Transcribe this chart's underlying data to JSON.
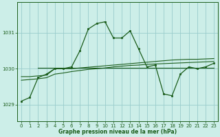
{
  "xlabel": "Graphe pression niveau de la mer (hPa)",
  "bg_color": "#cceee8",
  "grid_color": "#99cccc",
  "line_color": "#1a5c1a",
  "x_hours": [
    0,
    1,
    2,
    3,
    4,
    5,
    6,
    7,
    8,
    9,
    10,
    11,
    12,
    13,
    14,
    15,
    16,
    17,
    18,
    19,
    20,
    21,
    22,
    23
  ],
  "main_line": [
    1029.1,
    1029.2,
    1029.75,
    1029.85,
    1030.0,
    1030.0,
    1030.05,
    1030.5,
    1031.1,
    1031.25,
    1031.3,
    1030.85,
    1030.85,
    1031.05,
    1030.55,
    1030.05,
    1030.1,
    1029.3,
    1029.25,
    1029.85,
    1030.05,
    1030.0,
    1030.05,
    1030.15
  ],
  "smooth_line1": [
    1029.78,
    1029.78,
    1029.8,
    1029.82,
    1030.0,
    1030.0,
    1030.0,
    1030.02,
    1030.04,
    1030.06,
    1030.08,
    1030.1,
    1030.12,
    1030.14,
    1030.16,
    1030.18,
    1030.2,
    1030.22,
    1030.24,
    1030.25,
    1030.26,
    1030.26,
    1030.27,
    1030.28
  ],
  "smooth_line2": [
    1029.68,
    1029.7,
    1029.72,
    1029.75,
    1029.85,
    1029.88,
    1029.92,
    1029.95,
    1029.98,
    1030.0,
    1030.02,
    1030.05,
    1030.07,
    1030.09,
    1030.1,
    1030.12,
    1030.13,
    1030.14,
    1030.15,
    1030.16,
    1030.17,
    1030.18,
    1030.19,
    1030.2
  ],
  "flat_line_y": 1030.02,
  "flat_line_x_start": 2,
  "yticks": [
    1029,
    1030,
    1031
  ],
  "ylim": [
    1028.55,
    1031.85
  ],
  "xlim": [
    -0.5,
    23.5
  ],
  "xticks": [
    0,
    1,
    2,
    3,
    4,
    5,
    6,
    7,
    8,
    9,
    10,
    11,
    12,
    13,
    14,
    15,
    16,
    17,
    18,
    19,
    20,
    21,
    22,
    23
  ]
}
